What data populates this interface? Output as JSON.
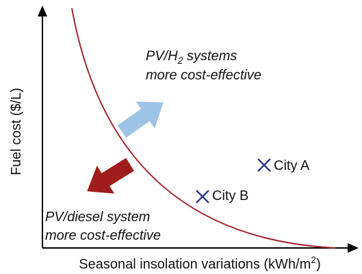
{
  "axes": {
    "y_label": "Fuel cost ($/L)",
    "x_label": {
      "text": "Seasonal insolation variations (kWh/m",
      "sup": "2",
      "end": ")"
    }
  },
  "regions": [
    {
      "line1": {
        "before": "PV/H",
        "sub": "2",
        "after": " systems"
      },
      "line2": "more cost-effective"
    },
    {
      "line1": "PV/diesel system",
      "line2": "more cost-effective"
    }
  ],
  "points": [
    {
      "label": "City A"
    },
    {
      "label": "City B"
    }
  ]
}
